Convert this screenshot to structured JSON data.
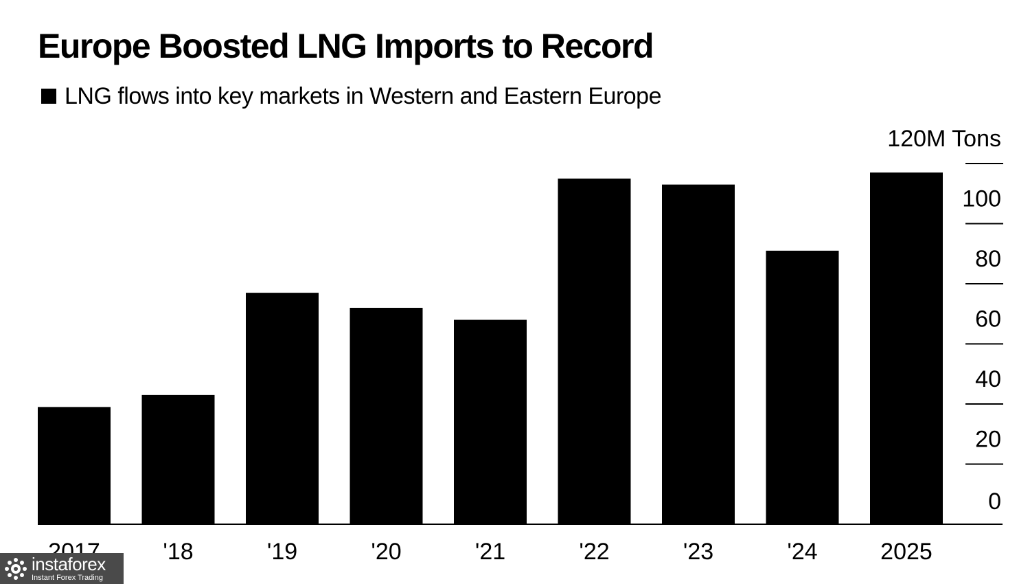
{
  "title": "Europe Boosted LNG Imports to Record",
  "legend": {
    "label": "LNG flows into key markets in Western and Eastern Europe",
    "color": "#000000"
  },
  "watermark": {
    "brand": "instaforex",
    "tagline": "Instant Forex Trading"
  },
  "chart_data": {
    "type": "bar",
    "title": "Europe Boosted LNG Imports to Record",
    "subtitle": "LNG flows into key markets in Western and Eastern Europe",
    "categories": [
      "2017",
      "'18",
      "'19",
      "'20",
      "'21",
      "'22",
      "'23",
      "'24",
      "2025"
    ],
    "series": [
      {
        "name": "LNG flows into key markets in Western and Eastern Europe",
        "values": [
          39,
          43,
          77,
          72,
          68,
          115,
          113,
          91,
          117
        ],
        "color": "#000000"
      }
    ],
    "y_ticks": [
      {
        "value": 0,
        "label": "0"
      },
      {
        "value": 20,
        "label": "20"
      },
      {
        "value": 40,
        "label": "40"
      },
      {
        "value": 60,
        "label": "60"
      },
      {
        "value": 80,
        "label": "80"
      },
      {
        "value": 100,
        "label": "100"
      },
      {
        "value": 120,
        "label": "120M Tons"
      }
    ],
    "ylim": [
      0,
      120
    ],
    "xlabel": "",
    "ylabel": "M Tons",
    "axis_position": "right",
    "grid": false
  }
}
